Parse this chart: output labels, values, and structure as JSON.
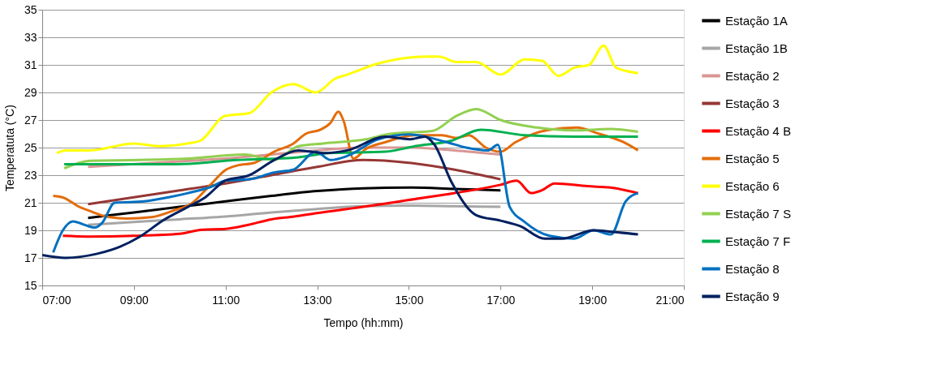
{
  "chart_data": {
    "type": "line",
    "xlabel": "Tempo (hh:mm)",
    "ylabel": "Temperatuta (°C)",
    "xlim": [
      7,
      21
    ],
    "xticks": [
      {
        "value": 7,
        "label": "07:00"
      },
      {
        "value": 9,
        "label": "09:00"
      },
      {
        "value": 11,
        "label": "11:00"
      },
      {
        "value": 13,
        "label": "13:00"
      },
      {
        "value": 15,
        "label": "15:00"
      },
      {
        "value": 17,
        "label": "17:00"
      },
      {
        "value": 19,
        "label": "19:00"
      },
      {
        "value": 21,
        "label": "21:00"
      }
    ],
    "ylim": [
      15,
      35
    ],
    "yticks": [
      15,
      17,
      19,
      21,
      23,
      25,
      27,
      29,
      31,
      33,
      35
    ],
    "grid": "y",
    "legend": "right",
    "marker": "none",
    "line_style": "solid",
    "series": [
      {
        "name": "Estação 1A",
        "color": "#000000",
        "x": [
          8,
          9,
          10,
          11,
          12,
          13,
          14,
          15,
          16,
          17
        ],
        "values": [
          19.9,
          20.3,
          20.7,
          21.1,
          21.5,
          21.85,
          22.05,
          22.1,
          22.0,
          21.9
        ]
      },
      {
        "name": "Estação 1B",
        "color": "#a6a6a6",
        "x": [
          8,
          9,
          10,
          11,
          12,
          13,
          14,
          15,
          16,
          17
        ],
        "values": [
          19.4,
          19.6,
          19.8,
          20.0,
          20.3,
          20.55,
          20.75,
          20.8,
          20.75,
          20.7
        ]
      },
      {
        "name": "Estação 2",
        "color": "#d99694",
        "x": [
          8,
          10,
          11,
          12,
          13,
          14,
          15,
          16,
          17
        ],
        "values": [
          23.6,
          24.0,
          24.2,
          24.5,
          24.8,
          25.0,
          25.0,
          24.8,
          24.5
        ]
      },
      {
        "name": "Estação 3",
        "color": "#953735",
        "x": [
          8,
          9,
          10,
          11,
          12,
          13,
          14,
          15,
          16,
          17
        ],
        "values": [
          20.9,
          21.4,
          21.9,
          22.4,
          23.0,
          23.6,
          24.1,
          23.9,
          23.4,
          22.7
        ]
      },
      {
        "name": "Estação 4 B",
        "color": "#ff0000",
        "x": [
          7.45,
          8,
          9,
          10,
          10.5,
          11,
          11.5,
          12,
          12.5,
          13,
          14,
          15,
          16,
          17,
          17.35,
          17.67,
          17.9,
          18.18,
          18.9,
          19.4,
          20
        ],
        "values": [
          18.6,
          18.55,
          18.6,
          18.75,
          19.05,
          19.1,
          19.4,
          19.8,
          20.0,
          20.25,
          20.7,
          21.2,
          21.7,
          22.3,
          22.6,
          21.7,
          21.9,
          22.4,
          22.2,
          22.1,
          21.7
        ]
      },
      {
        "name": "Estação 5",
        "color": "#e46c0a",
        "x": [
          7.24,
          7.48,
          7.78,
          8.04,
          8.47,
          8.85,
          9.38,
          9.92,
          10.24,
          10.67,
          10.99,
          11.25,
          11.63,
          12.06,
          12.48,
          12.75,
          13.07,
          13.29,
          13.46,
          13.58,
          13.79,
          14.06,
          14.49,
          15.13,
          15.72,
          16.04,
          16.31,
          16.68,
          17.0,
          17.33,
          18.07,
          18.66,
          19.15,
          19.68,
          20.0
        ],
        "values": [
          21.5,
          21.35,
          20.75,
          20.4,
          19.95,
          19.85,
          19.95,
          20.5,
          20.9,
          22.3,
          23.35,
          23.7,
          23.9,
          24.7,
          25.3,
          26.0,
          26.3,
          26.8,
          27.6,
          26.9,
          24.2,
          24.9,
          25.4,
          25.9,
          25.9,
          25.7,
          25.9,
          25.0,
          24.7,
          25.4,
          26.3,
          26.45,
          26.0,
          25.4,
          24.8
        ]
      },
      {
        "name": "Estação 6",
        "color": "#ffff00",
        "x": [
          7.32,
          7.51,
          8.04,
          9.0,
          9.54,
          10.18,
          10.45,
          10.99,
          11.52,
          12.0,
          12.48,
          12.97,
          13.39,
          13.66,
          14.33,
          15.4,
          15.66,
          16.04,
          16.47,
          17.0,
          17.53,
          17.91,
          18.26,
          18.61,
          18.93,
          19.25,
          19.52,
          20.0
        ],
        "values": [
          24.6,
          24.8,
          24.8,
          25.3,
          25.1,
          25.3,
          25.5,
          27.3,
          27.5,
          29.0,
          29.6,
          29.0,
          30.0,
          30.3,
          31.1,
          31.6,
          31.6,
          31.2,
          31.2,
          30.3,
          31.4,
          31.3,
          30.2,
          30.8,
          31.0,
          32.4,
          30.8,
          30.4
        ]
      },
      {
        "name": "Estação 7 S",
        "color": "#92d050",
        "x": [
          7.48,
          8.04,
          9.11,
          10.18,
          11.41,
          12.06,
          12.59,
          13.13,
          14.06,
          14.6,
          15.51,
          16.04,
          16.47,
          17.0,
          17.8,
          18.61,
          19.41,
          20.0
        ],
        "values": [
          23.5,
          24.05,
          24.1,
          24.2,
          24.5,
          24.1,
          25.1,
          25.3,
          25.6,
          26.0,
          26.2,
          27.3,
          27.8,
          27.0,
          26.45,
          26.25,
          26.35,
          26.15
        ]
      },
      {
        "name": "Estação 7 F",
        "color": "#00b050",
        "x": [
          7.48,
          8.58,
          9.92,
          11.25,
          12.59,
          13.26,
          14.49,
          15.13,
          15.93,
          16.57,
          17.53,
          18.61,
          20.0
        ],
        "values": [
          23.8,
          23.8,
          23.8,
          24.1,
          24.3,
          24.6,
          24.7,
          25.1,
          25.5,
          26.3,
          25.9,
          25.8,
          25.8
        ]
      },
      {
        "name": "Estação 8",
        "color": "#0070c0",
        "x": [
          7.24,
          7.45,
          7.67,
          7.88,
          8.15,
          8.31,
          8.58,
          9.22,
          9.76,
          10.18,
          10.72,
          10.99,
          11.52,
          12.06,
          12.48,
          12.97,
          13.29,
          13.66,
          14.33,
          15.02,
          15.82,
          16.25,
          16.73,
          16.94,
          17.2,
          17.53,
          18.07,
          18.61,
          19.03,
          19.41,
          19.73,
          20.0
        ],
        "values": [
          17.4,
          19.0,
          19.65,
          19.45,
          19.2,
          19.55,
          21.0,
          21.1,
          21.4,
          21.7,
          22.2,
          22.6,
          22.7,
          23.2,
          23.4,
          24.7,
          24.1,
          24.4,
          25.6,
          25.95,
          25.4,
          25.0,
          24.8,
          25.2,
          20.7,
          19.6,
          18.6,
          18.4,
          19.0,
          18.7,
          21.1,
          21.7
        ]
      },
      {
        "name": "Estação 9",
        "color": "#002060",
        "x": [
          7.0,
          7.51,
          8.2,
          8.69,
          9.11,
          9.65,
          10.18,
          10.56,
          10.99,
          11.52,
          12.06,
          12.59,
          13.13,
          13.66,
          14.49,
          15.02,
          15.35,
          15.56,
          15.93,
          16.47,
          17.0,
          17.43,
          17.96,
          18.34,
          19.03,
          19.41,
          20.0
        ],
        "values": [
          17.2,
          17.0,
          17.3,
          17.8,
          18.5,
          19.75,
          20.7,
          21.4,
          22.6,
          23.0,
          24.1,
          24.8,
          24.6,
          24.8,
          25.8,
          25.6,
          25.8,
          25.2,
          22.5,
          20.1,
          19.7,
          19.3,
          18.4,
          18.4,
          19.0,
          18.9,
          18.7
        ]
      }
    ]
  }
}
